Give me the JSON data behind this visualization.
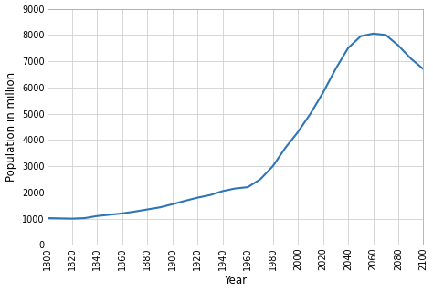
{
  "x": [
    1800,
    1810,
    1820,
    1830,
    1840,
    1850,
    1860,
    1870,
    1880,
    1890,
    1900,
    1910,
    1920,
    1930,
    1940,
    1950,
    1960,
    1970,
    1980,
    1990,
    2000,
    2010,
    2020,
    2030,
    2040,
    2050,
    2060,
    2070,
    2080,
    2090,
    2100
  ],
  "y": [
    1020,
    1010,
    1000,
    1020,
    1100,
    1150,
    1200,
    1270,
    1350,
    1430,
    1550,
    1680,
    1800,
    1900,
    2050,
    2150,
    2200,
    2500,
    3000,
    3700,
    4300,
    5000,
    5800,
    6700,
    7500,
    7950,
    8050,
    8000,
    7600,
    7100,
    6700
  ],
  "line_color": "#2e75b6",
  "line_width": 1.5,
  "xlabel": "Year",
  "ylabel": "Population in million",
  "xlim": [
    1800,
    2100
  ],
  "ylim": [
    0,
    9000
  ],
  "yticks": [
    0,
    1000,
    2000,
    3000,
    4000,
    5000,
    6000,
    7000,
    8000,
    9000
  ],
  "xticks": [
    1800,
    1820,
    1840,
    1860,
    1880,
    1900,
    1920,
    1940,
    1960,
    1980,
    2000,
    2020,
    2040,
    2060,
    2080,
    2100
  ],
  "grid_color": "#d0d0d0",
  "background_color": "#ffffff",
  "tick_label_fontsize": 7.0,
  "axis_label_fontsize": 8.5,
  "fig_width": 4.74,
  "fig_height": 3.2,
  "dpi": 100
}
